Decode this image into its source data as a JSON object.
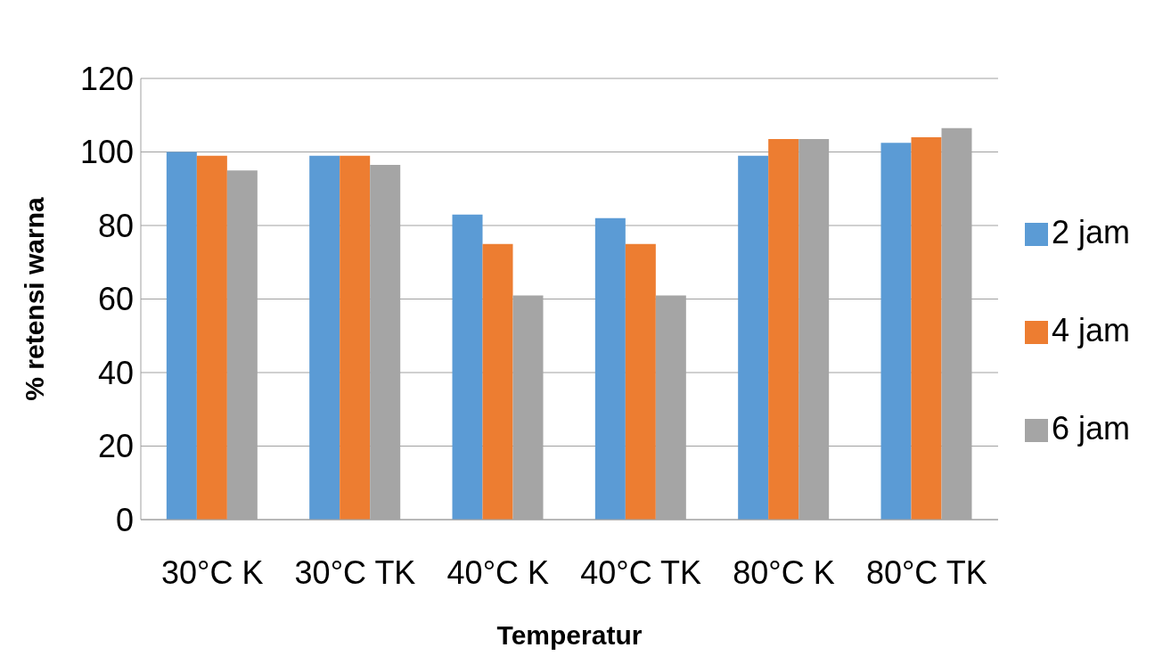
{
  "chart_data": {
    "type": "bar",
    "xlabel": "Temperatur",
    "ylabel": "% retensi warna",
    "categories": [
      "30°C K",
      "30°C TK",
      "40°C K",
      "40°C TK",
      "80°C K",
      "80°C TK"
    ],
    "series": [
      {
        "name": "2 jam",
        "color": "#5b9bd5",
        "values": [
          100,
          99,
          83,
          82,
          99,
          102.5
        ]
      },
      {
        "name": "4 jam",
        "color": "#ed7d31",
        "values": [
          99,
          99,
          75,
          75,
          103.5,
          104
        ]
      },
      {
        "name": "6 jam",
        "color": "#a5a5a5",
        "values": [
          95,
          96.5,
          61,
          61,
          103.5,
          106.5
        ]
      }
    ],
    "ylim": [
      0,
      120
    ],
    "yticks": [
      0,
      20,
      40,
      60,
      80,
      100,
      120
    ],
    "grid": "y",
    "legend": "right"
  }
}
